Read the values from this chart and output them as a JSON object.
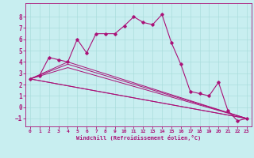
{
  "xlabel": "Windchill (Refroidissement éolien,°C)",
  "background_color": "#c8eef0",
  "line_color": "#aa1177",
  "grid_color": "#aadddd",
  "xlim": [
    -0.5,
    23.5
  ],
  "ylim": [
    -1.7,
    9.2
  ],
  "xticks": [
    0,
    1,
    2,
    3,
    4,
    5,
    6,
    7,
    8,
    9,
    10,
    11,
    12,
    13,
    14,
    15,
    16,
    17,
    18,
    19,
    20,
    21,
    22,
    23
  ],
  "yticks": [
    -1,
    0,
    1,
    2,
    3,
    4,
    5,
    6,
    7,
    8
  ],
  "main_series": {
    "x": [
      0,
      1,
      2,
      3,
      4,
      5,
      6,
      7,
      8,
      9,
      10,
      11,
      12,
      13,
      14,
      15,
      16,
      17,
      18,
      19,
      20,
      21,
      22,
      23
    ],
    "y": [
      2.5,
      2.8,
      4.4,
      4.2,
      4.0,
      6.0,
      4.8,
      6.5,
      6.5,
      6.5,
      7.2,
      8.0,
      7.5,
      7.3,
      8.2,
      5.7,
      3.8,
      1.4,
      1.2,
      1.0,
      2.2,
      -0.3,
      -1.2,
      -1.0
    ]
  },
  "ref_lines": [
    {
      "x": [
        0,
        23
      ],
      "y": [
        2.5,
        -1.0
      ]
    },
    {
      "x": [
        0,
        23
      ],
      "y": [
        2.5,
        -1.0
      ]
    },
    {
      "x": [
        0,
        4,
        23
      ],
      "y": [
        2.5,
        4.0,
        -1.0
      ]
    },
    {
      "x": [
        0,
        4,
        23
      ],
      "y": [
        2.5,
        3.8,
        -1.0
      ]
    },
    {
      "x": [
        0,
        4,
        23
      ],
      "y": [
        2.5,
        3.5,
        -1.0
      ]
    }
  ]
}
